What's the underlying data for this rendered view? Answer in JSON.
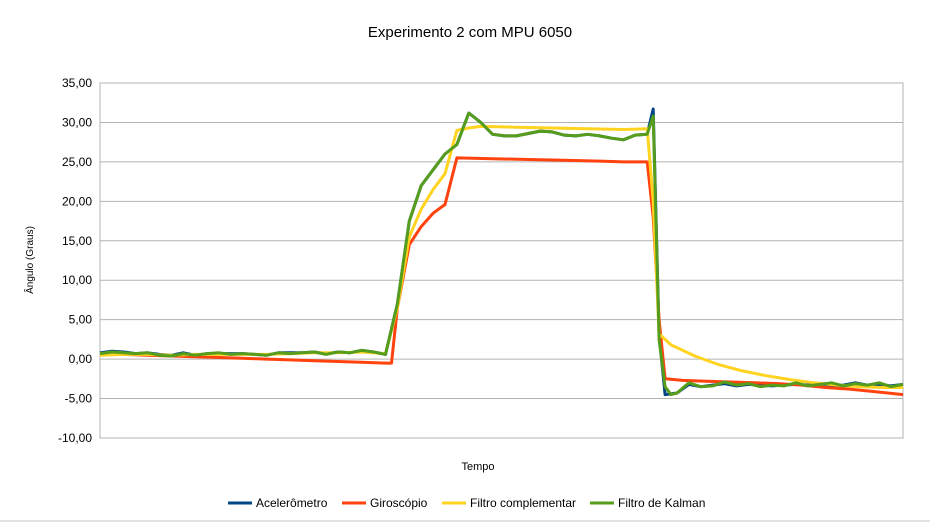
{
  "chart_data": {
    "type": "line",
    "title": "Experimento 2 com MPU 6050",
    "xlabel": "Tempo",
    "ylabel": "Ângulo (Graus)",
    "ylim": [
      -10,
      35
    ],
    "yticks": [
      "35,00",
      "30,00",
      "25,00",
      "20,00",
      "15,00",
      "10,00",
      "5,00",
      "0,00",
      "-5,00",
      "-10,00"
    ],
    "ytick_values": [
      35,
      30,
      25,
      20,
      15,
      10,
      5,
      0,
      -5,
      -10
    ],
    "grid": "horizontal",
    "legend_position": "bottom",
    "x_count": 135,
    "series": [
      {
        "name": "Acelerômetro",
        "color": "#004586",
        "points": [
          [
            0,
            0.8
          ],
          [
            2,
            1.0
          ],
          [
            4,
            0.9
          ],
          [
            6,
            0.7
          ],
          [
            8,
            0.8
          ],
          [
            10,
            0.6
          ],
          [
            12,
            0.5
          ],
          [
            14,
            0.8
          ],
          [
            16,
            0.5
          ],
          [
            18,
            0.7
          ],
          [
            20,
            0.7
          ],
          [
            24,
            0.7
          ],
          [
            26,
            0.6
          ],
          [
            28,
            0.5
          ],
          [
            30,
            0.8
          ],
          [
            34,
            0.8
          ],
          [
            36,
            0.9
          ],
          [
            38,
            0.7
          ],
          [
            40,
            0.9
          ],
          [
            42,
            0.8
          ],
          [
            44,
            1.1
          ],
          [
            46,
            0.9
          ],
          [
            48,
            0.6
          ],
          [
            50,
            7.0
          ],
          [
            52,
            17.5
          ],
          [
            54,
            22.0
          ],
          [
            56,
            24.0
          ],
          [
            58,
            26.0
          ],
          [
            60,
            27.2
          ],
          [
            62,
            31.2
          ],
          [
            64,
            30.0
          ],
          [
            66,
            28.5
          ],
          [
            68,
            28.3
          ],
          [
            70,
            28.3
          ],
          [
            72,
            28.6
          ],
          [
            74,
            28.9
          ],
          [
            76,
            28.8
          ],
          [
            78,
            28.4
          ],
          [
            80,
            28.3
          ],
          [
            82,
            28.5
          ],
          [
            84,
            28.3
          ],
          [
            86,
            28.0
          ],
          [
            88,
            27.8
          ],
          [
            90,
            28.4
          ],
          [
            92,
            28.5
          ],
          [
            93,
            31.7
          ],
          [
            94,
            3.0
          ],
          [
            95,
            -4.5
          ],
          [
            97,
            -4.3
          ],
          [
            99,
            -3.2
          ],
          [
            101,
            -3.5
          ],
          [
            103,
            -3.3
          ],
          [
            105,
            -3.1
          ],
          [
            107,
            -3.4
          ],
          [
            109,
            -3.2
          ],
          [
            111,
            -3.3
          ],
          [
            113,
            -3.4
          ],
          [
            115,
            -3.3
          ],
          [
            117,
            -3.2
          ],
          [
            119,
            -3.3
          ],
          [
            121,
            -3.1
          ],
          [
            123,
            -3.4
          ],
          [
            125,
            -3.3
          ],
          [
            127,
            -3.0
          ],
          [
            129,
            -3.3
          ],
          [
            131,
            -3.2
          ],
          [
            133,
            -3.4
          ],
          [
            135,
            -3.2
          ]
        ]
      },
      {
        "name": "Giroscópio",
        "color": "#ff420e",
        "points": [
          [
            0,
            0.6
          ],
          [
            4,
            0.6
          ],
          [
            8,
            0.5
          ],
          [
            12,
            0.4
          ],
          [
            16,
            0.3
          ],
          [
            20,
            0.2
          ],
          [
            24,
            0.1
          ],
          [
            28,
            0.0
          ],
          [
            32,
            -0.1
          ],
          [
            36,
            -0.2
          ],
          [
            40,
            -0.3
          ],
          [
            44,
            -0.4
          ],
          [
            48,
            -0.5
          ],
          [
            49,
            -0.5
          ],
          [
            50,
            6.5
          ],
          [
            52,
            14.5
          ],
          [
            54,
            16.8
          ],
          [
            56,
            18.5
          ],
          [
            58,
            19.6
          ],
          [
            60,
            25.5
          ],
          [
            66,
            25.4
          ],
          [
            72,
            25.3
          ],
          [
            78,
            25.2
          ],
          [
            84,
            25.1
          ],
          [
            88,
            25.0
          ],
          [
            92,
            25.0
          ],
          [
            93,
            18.0
          ],
          [
            94,
            5.0
          ],
          [
            95,
            -2.5
          ],
          [
            98,
            -2.7
          ],
          [
            102,
            -2.8
          ],
          [
            106,
            -2.9
          ],
          [
            110,
            -3.0
          ],
          [
            114,
            -3.1
          ],
          [
            118,
            -3.3
          ],
          [
            122,
            -3.6
          ],
          [
            126,
            -3.8
          ],
          [
            130,
            -4.1
          ],
          [
            135,
            -4.5
          ]
        ]
      },
      {
        "name": "Filtro complementar",
        "color": "#ffd320",
        "points": [
          [
            0,
            0.5
          ],
          [
            4,
            0.6
          ],
          [
            8,
            0.6
          ],
          [
            12,
            0.5
          ],
          [
            16,
            0.6
          ],
          [
            20,
            0.6
          ],
          [
            24,
            0.6
          ],
          [
            28,
            0.6
          ],
          [
            32,
            0.7
          ],
          [
            36,
            0.8
          ],
          [
            40,
            0.8
          ],
          [
            44,
            0.9
          ],
          [
            48,
            0.7
          ],
          [
            50,
            6.5
          ],
          [
            52,
            15.5
          ],
          [
            54,
            19.0
          ],
          [
            56,
            21.5
          ],
          [
            58,
            23.5
          ],
          [
            60,
            29.0
          ],
          [
            62,
            29.3
          ],
          [
            64,
            29.5
          ],
          [
            70,
            29.4
          ],
          [
            76,
            29.3
          ],
          [
            82,
            29.2
          ],
          [
            88,
            29.1
          ],
          [
            92,
            29.2
          ],
          [
            93,
            20.0
          ],
          [
            94,
            3.2
          ],
          [
            96,
            1.8
          ],
          [
            100,
            0.4
          ],
          [
            104,
            -0.7
          ],
          [
            108,
            -1.5
          ],
          [
            112,
            -2.1
          ],
          [
            116,
            -2.6
          ],
          [
            120,
            -3.0
          ],
          [
            124,
            -3.3
          ],
          [
            128,
            -3.5
          ],
          [
            132,
            -3.6
          ],
          [
            135,
            -3.6
          ]
        ]
      },
      {
        "name": "Filtro de Kalman",
        "color": "#579d1c",
        "points": [
          [
            0,
            0.7
          ],
          [
            2,
            0.9
          ],
          [
            4,
            0.8
          ],
          [
            6,
            0.7
          ],
          [
            8,
            0.8
          ],
          [
            10,
            0.5
          ],
          [
            12,
            0.4
          ],
          [
            14,
            0.7
          ],
          [
            16,
            0.5
          ],
          [
            18,
            0.7
          ],
          [
            20,
            0.8
          ],
          [
            22,
            0.6
          ],
          [
            24,
            0.7
          ],
          [
            26,
            0.6
          ],
          [
            28,
            0.5
          ],
          [
            30,
            0.8
          ],
          [
            32,
            0.7
          ],
          [
            34,
            0.8
          ],
          [
            36,
            0.9
          ],
          [
            38,
            0.6
          ],
          [
            40,
            0.9
          ],
          [
            42,
            0.8
          ],
          [
            44,
            1.1
          ],
          [
            46,
            0.9
          ],
          [
            48,
            0.6
          ],
          [
            50,
            7.0
          ],
          [
            52,
            17.5
          ],
          [
            54,
            22.0
          ],
          [
            56,
            24.0
          ],
          [
            58,
            26.0
          ],
          [
            60,
            27.2
          ],
          [
            62,
            31.2
          ],
          [
            64,
            30.0
          ],
          [
            66,
            28.5
          ],
          [
            68,
            28.3
          ],
          [
            70,
            28.3
          ],
          [
            72,
            28.6
          ],
          [
            74,
            28.9
          ],
          [
            76,
            28.8
          ],
          [
            78,
            28.4
          ],
          [
            80,
            28.3
          ],
          [
            82,
            28.5
          ],
          [
            84,
            28.3
          ],
          [
            86,
            28.0
          ],
          [
            88,
            27.8
          ],
          [
            90,
            28.4
          ],
          [
            92,
            28.5
          ],
          [
            93,
            30.8
          ],
          [
            94,
            2.5
          ],
          [
            95,
            -3.5
          ],
          [
            96,
            -4.5
          ],
          [
            97,
            -4.3
          ],
          [
            99,
            -3.0
          ],
          [
            101,
            -3.5
          ],
          [
            103,
            -3.4
          ],
          [
            105,
            -2.9
          ],
          [
            107,
            -3.3
          ],
          [
            109,
            -3.1
          ],
          [
            111,
            -3.5
          ],
          [
            113,
            -3.3
          ],
          [
            115,
            -3.4
          ],
          [
            117,
            -3.0
          ],
          [
            119,
            -3.4
          ],
          [
            121,
            -3.2
          ],
          [
            123,
            -3.0
          ],
          [
            125,
            -3.4
          ],
          [
            127,
            -3.1
          ],
          [
            129,
            -3.3
          ],
          [
            131,
            -3.0
          ],
          [
            133,
            -3.5
          ],
          [
            135,
            -3.2
          ]
        ]
      }
    ]
  }
}
